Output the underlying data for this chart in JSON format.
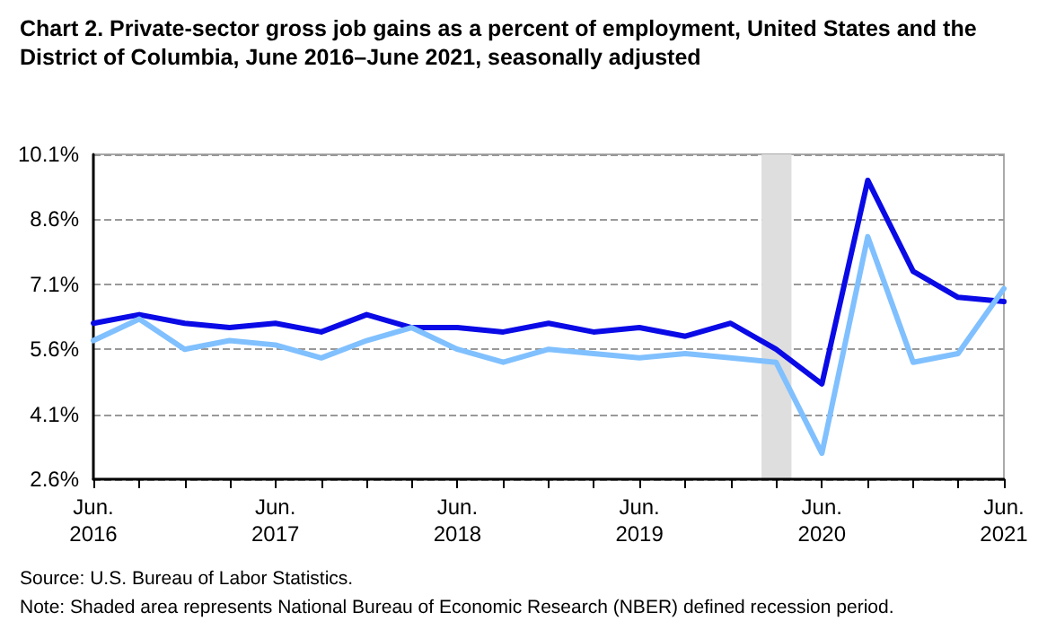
{
  "chart_data": {
    "type": "line",
    "title": "Chart 2. Private-sector gross job gains as a percent of employment, United States and the District of Columbia, June 2016–June 2021, seasonally adjusted",
    "x": [
      "2016-06",
      "2016-09",
      "2016-12",
      "2017-03",
      "2017-06",
      "2017-09",
      "2017-12",
      "2018-03",
      "2018-06",
      "2018-09",
      "2018-12",
      "2019-03",
      "2019-06",
      "2019-09",
      "2019-12",
      "2020-03",
      "2020-06",
      "2020-09",
      "2020-12",
      "2021-03",
      "2021-06"
    ],
    "series": [
      {
        "color": "#0a0ae6",
        "values": [
          6.2,
          6.4,
          6.2,
          6.1,
          6.2,
          6.0,
          6.4,
          6.1,
          6.1,
          6.0,
          6.2,
          6.0,
          6.1,
          5.9,
          6.2,
          5.6,
          4.8,
          9.5,
          7.4,
          6.8,
          6.7
        ]
      },
      {
        "color": "#80c0ff",
        "values": [
          5.8,
          6.3,
          5.6,
          5.8,
          5.7,
          5.4,
          5.8,
          6.1,
          5.6,
          5.3,
          5.6,
          5.5,
          5.4,
          5.5,
          5.4,
          5.3,
          3.2,
          8.2,
          5.3,
          5.5,
          7.0
        ]
      }
    ],
    "xlim": [
      "2016-06",
      "2021-06"
    ],
    "xticks": [
      {
        "value": "2016-06",
        "label": "Jun.\n2016"
      },
      {
        "value": "2016-09",
        "label": null
      },
      {
        "value": "2016-12",
        "label": null
      },
      {
        "value": "2017-03",
        "label": null
      },
      {
        "value": "2017-06",
        "label": "Jun.\n2017"
      },
      {
        "value": "2017-09",
        "label": null
      },
      {
        "value": "2017-12",
        "label": null
      },
      {
        "value": "2018-03",
        "label": null
      },
      {
        "value": "2018-06",
        "label": "Jun.\n2018"
      },
      {
        "value": "2018-09",
        "label": null
      },
      {
        "value": "2018-12",
        "label": null
      },
      {
        "value": "2019-03",
        "label": null
      },
      {
        "value": "2019-06",
        "label": "Jun.\n2019"
      },
      {
        "value": "2019-09",
        "label": null
      },
      {
        "value": "2019-12",
        "label": null
      },
      {
        "value": "2020-03",
        "label": null
      },
      {
        "value": "2020-06",
        "label": "Jun.\n2020"
      },
      {
        "value": "2020-09",
        "label": null
      },
      {
        "value": "2020-12",
        "label": null
      },
      {
        "value": "2021-03",
        "label": null
      },
      {
        "value": "2021-06",
        "label": "Jun.\n2021"
      }
    ],
    "ylim": [
      2.6,
      10.1
    ],
    "yticks": [
      {
        "value": 2.6,
        "label": "2.6%"
      },
      {
        "value": 4.1,
        "label": "4.1%"
      },
      {
        "value": 5.6,
        "label": "5.6%"
      },
      {
        "value": 7.1,
        "label": "7.1%"
      },
      {
        "value": 8.6,
        "label": "8.6%"
      },
      {
        "value": 10.1,
        "label": "10.1%"
      }
    ],
    "bands": [
      {
        "axis": "x",
        "from": "2020-02",
        "to": "2020-04",
        "color": "#dedede"
      }
    ],
    "annotations": [
      "Source: U.S. Bureau of Labor Statistics.",
      "Note: Shaded area represents National Bureau of Economic Research (NBER) defined recession period."
    ],
    "grid": "y",
    "marker": "none",
    "line_style": "solid"
  }
}
